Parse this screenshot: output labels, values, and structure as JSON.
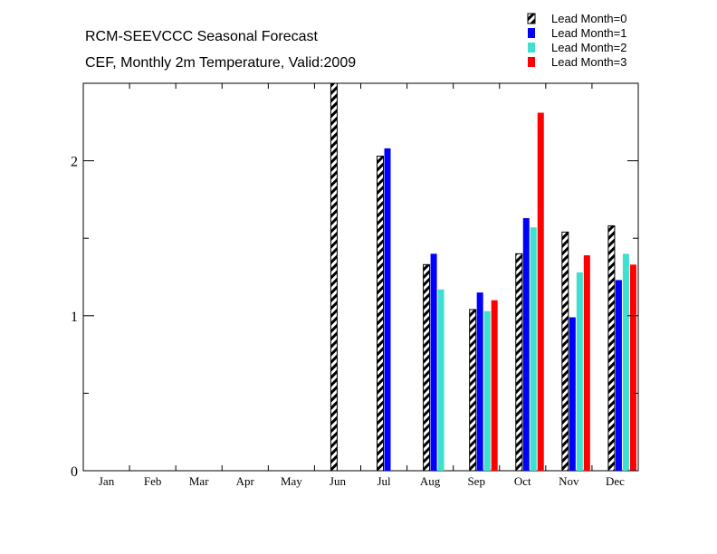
{
  "chart_data": {
    "type": "bar",
    "title": "RCM-SEEVCCC Seasonal Forecast",
    "subtitle": "CEF, Monthly 2m Temperature, Valid:2009",
    "xlabel": "",
    "ylabel": "",
    "ylim": [
      0,
      2.5
    ],
    "y_ticks": [
      "0",
      "1",
      "2"
    ],
    "categories": [
      "Jan",
      "Feb",
      "Mar",
      "Apr",
      "May",
      "Jun",
      "Jul",
      "Aug",
      "Sep",
      "Oct",
      "Nov",
      "Dec"
    ],
    "legend_position": "top-right",
    "series": [
      {
        "name": "Lead Month=0",
        "pattern": "hatched",
        "color": "#000000",
        "values": [
          null,
          null,
          null,
          null,
          null,
          2.5,
          2.03,
          1.33,
          1.04,
          1.4,
          1.54,
          1.58
        ]
      },
      {
        "name": "Lead Month=1",
        "color": "#0000ff",
        "values": [
          null,
          null,
          null,
          null,
          null,
          null,
          2.08,
          1.4,
          1.15,
          1.63,
          0.99,
          1.23
        ]
      },
      {
        "name": "Lead Month=2",
        "color": "#40e0d0",
        "values": [
          null,
          null,
          null,
          null,
          null,
          null,
          null,
          1.17,
          1.03,
          1.57,
          1.28,
          1.4
        ]
      },
      {
        "name": "Lead Month=3",
        "color": "#ff0000",
        "values": [
          null,
          null,
          null,
          null,
          null,
          null,
          null,
          null,
          1.1,
          2.31,
          1.39,
          1.33
        ]
      }
    ]
  }
}
